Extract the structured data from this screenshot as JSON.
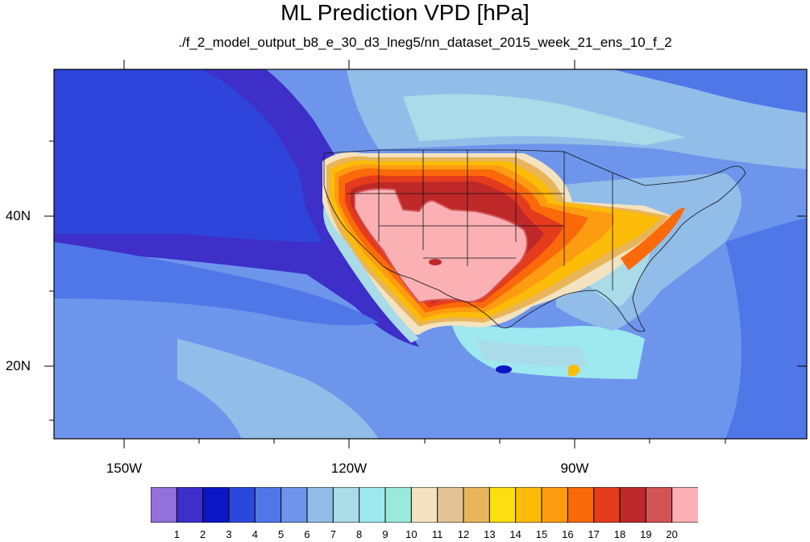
{
  "title": "ML Prediction VPD [hPa]",
  "subtitle": "./f_2_model_output_b8_e_30_d3_lneg5/nn_dataset_2015_week_21_ens_10_f_2",
  "map": {
    "lat_labels": [
      "40N",
      "20N"
    ],
    "lon_labels": [
      "150W",
      "120W",
      "90W"
    ]
  },
  "colorbar": {
    "colors": [
      "#9370db",
      "#3d2fc8",
      "#0b16c5",
      "#2b48dd",
      "#4f77e8",
      "#6e95ec",
      "#92bde9",
      "#a9dbe8",
      "#9ee8ef",
      "#9aead9",
      "#f3e3c0",
      "#e3c294",
      "#e9b55a",
      "#fddf0f",
      "#fcbc07",
      "#fd9c11",
      "#fb6a0a",
      "#e53b1d",
      "#bf2828",
      "#d35456",
      "#fbb1b3"
    ],
    "labels": [
      "1",
      "2",
      "3",
      "4",
      "5",
      "6",
      "7",
      "8",
      "9",
      "10",
      "11",
      "12",
      "13",
      "14",
      "15",
      "16",
      "17",
      "18",
      "19",
      "20"
    ]
  }
}
